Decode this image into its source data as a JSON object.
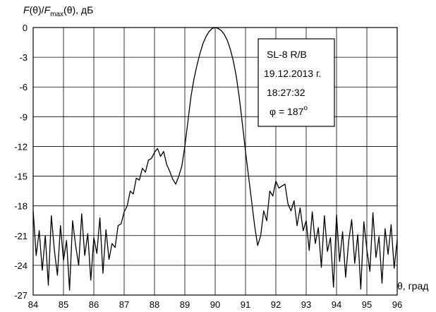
{
  "chart_data": {
    "type": "line",
    "ylabel_parts": {
      "f1": "F",
      "p1": "(θ)/",
      "f2": "F",
      "sub": "max",
      "p2": "(θ), дБ"
    },
    "xlabel": "θ, град",
    "xlim": [
      84,
      96
    ],
    "ylim": [
      -27,
      0
    ],
    "xticks": [
      84,
      85,
      86,
      87,
      88,
      89,
      90,
      91,
      92,
      93,
      94,
      95,
      96
    ],
    "yticks": [
      0,
      -3,
      -6,
      -9,
      -12,
      -15,
      -18,
      -21,
      -24,
      -27
    ],
    "grid": true,
    "annotation": {
      "lines": [
        "SL-8 R/B",
        "19.12.2013 г.",
        "18:27:32"
      ],
      "phi_label": "φ = 187",
      "phi_unit": "o"
    },
    "colors": {
      "line": "#000000",
      "grid": "#000000",
      "background": "#ffffff"
    },
    "series": [
      {
        "x": [
          84.0,
          84.1,
          84.2,
          84.3,
          84.4,
          84.5,
          84.6,
          84.7,
          84.8,
          84.9,
          85.0,
          85.1,
          85.2,
          85.3,
          85.4,
          85.5,
          85.6,
          85.7,
          85.8,
          85.9,
          86.0,
          86.1,
          86.2,
          86.3,
          86.4,
          86.5,
          86.6,
          86.7,
          86.8,
          86.9,
          87.0,
          87.1,
          87.2,
          87.3,
          87.4,
          87.5,
          87.6,
          87.7,
          87.8,
          87.9,
          88.0,
          88.1,
          88.2,
          88.3,
          88.4,
          88.5,
          88.6,
          88.7,
          88.8,
          88.9,
          89.0,
          89.1,
          89.2,
          89.3,
          89.4,
          89.5,
          89.6,
          89.7,
          89.8,
          89.9,
          90.0,
          90.1,
          90.2,
          90.3,
          90.4,
          90.5,
          90.6,
          90.7,
          90.8,
          90.9,
          91.0,
          91.1,
          91.2,
          91.3,
          91.4,
          91.5,
          91.6,
          91.7,
          91.8,
          91.9,
          92.0,
          92.1,
          92.2,
          92.3,
          92.4,
          92.5,
          92.6,
          92.7,
          92.8,
          92.9,
          93.0,
          93.1,
          93.2,
          93.3,
          93.4,
          93.5,
          93.6,
          93.7,
          93.8,
          93.9,
          94.0,
          94.1,
          94.2,
          94.3,
          94.4,
          94.5,
          94.6,
          94.7,
          94.8,
          94.9,
          95.0,
          95.1,
          95.2,
          95.3,
          95.4,
          95.5,
          95.6,
          95.7,
          95.8,
          95.9,
          96.0
        ],
        "y": [
          -18.5,
          -23.0,
          -20.5,
          -24.5,
          -21.0,
          -26.0,
          -19.0,
          -22.5,
          -25.0,
          -20.0,
          -23.5,
          -21.5,
          -26.5,
          -19.5,
          -22.0,
          -24.0,
          -18.8,
          -23.0,
          -20.8,
          -25.5,
          -21.2,
          -22.8,
          -19.2,
          -24.8,
          -20.4,
          -23.4,
          -21.8,
          -22.2,
          -20.0,
          -19.8,
          -18.6,
          -18.0,
          -16.5,
          -16.8,
          -15.2,
          -15.4,
          -14.2,
          -14.6,
          -13.4,
          -13.2,
          -12.6,
          -12.2,
          -13.0,
          -12.5,
          -13.8,
          -14.5,
          -15.3,
          -15.8,
          -15.0,
          -14.0,
          -12.0,
          -9.5,
          -7.0,
          -5.2,
          -3.8,
          -2.6,
          -1.6,
          -0.9,
          -0.4,
          -0.1,
          0.0,
          -0.1,
          -0.3,
          -0.7,
          -1.3,
          -2.2,
          -3.4,
          -5.0,
          -7.2,
          -9.8,
          -12.5,
          -15.0,
          -17.5,
          -20.0,
          -22.0,
          -21.0,
          -18.5,
          -19.5,
          -16.5,
          -17.0,
          -15.5,
          -16.2,
          -16.0,
          -15.8,
          -17.8,
          -18.5,
          -17.5,
          -20.0,
          -18.2,
          -20.5,
          -19.5,
          -22.5,
          -18.6,
          -21.8,
          -20.2,
          -24.2,
          -19.0,
          -22.6,
          -21.2,
          -26.2,
          -18.9,
          -23.6,
          -20.6,
          -25.2,
          -21.6,
          -19.4,
          -23.8,
          -20.9,
          -26.4,
          -19.6,
          -22.4,
          -24.6,
          -18.7,
          -23.2,
          -21.1,
          -25.8,
          -20.3,
          -22.9,
          -19.9,
          -24.3,
          -21.4
        ]
      }
    ]
  }
}
